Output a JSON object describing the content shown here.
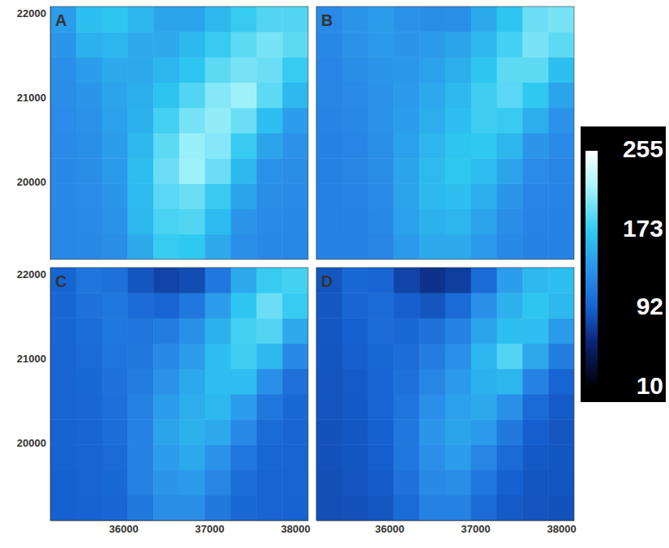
{
  "chart_data": [
    {
      "type": "heatmap",
      "title": "A",
      "tick_labels": "y",
      "xlim": [
        35150,
        38150
      ],
      "ylim": [
        19080,
        22080
      ],
      "yticks": [
        20000,
        21000,
        22000
      ],
      "x": [
        35300,
        35600,
        35900,
        36200,
        36500,
        36800,
        37100,
        37400,
        37700,
        38000
      ],
      "y": [
        19230,
        19530,
        19830,
        20130,
        20430,
        20730,
        21030,
        21330,
        21630,
        21930
      ],
      "cells": [
        [
          124,
          125,
          128,
          150,
          175,
          172,
          150,
          130,
          125,
          124
        ],
        [
          124,
          126,
          132,
          160,
          182,
          185,
          162,
          135,
          126,
          125
        ],
        [
          125,
          127,
          135,
          162,
          188,
          195,
          175,
          145,
          128,
          126
        ],
        [
          125,
          128,
          138,
          165,
          195,
          215,
          195,
          160,
          132,
          128
        ],
        [
          126,
          130,
          140,
          160,
          190,
          212,
          205,
          175,
          145,
          132
        ],
        [
          127,
          132,
          142,
          155,
          180,
          200,
          210,
          195,
          165,
          140
        ],
        [
          128,
          135,
          145,
          152,
          168,
          185,
          205,
          215,
          190,
          160
        ],
        [
          130,
          140,
          150,
          150,
          158,
          170,
          190,
          200,
          195,
          175
        ],
        [
          135,
          155,
          158,
          150,
          150,
          160,
          175,
          190,
          200,
          190
        ],
        [
          140,
          165,
          170,
          158,
          145,
          145,
          160,
          175,
          185,
          185
        ]
      ]
    },
    {
      "type": "heatmap",
      "title": "B",
      "tick_labels": false,
      "xlim": [
        35150,
        38150
      ],
      "ylim": [
        19080,
        22080
      ],
      "x": [
        35300,
        35600,
        35900,
        36200,
        36500,
        36800,
        37100,
        37400,
        37700,
        38000
      ],
      "y": [
        19230,
        19530,
        19830,
        20130,
        20430,
        20730,
        21030,
        21330,
        21630,
        21930
      ],
      "cells": [
        [
          118,
          119,
          122,
          138,
          150,
          150,
          138,
          125,
          120,
          119
        ],
        [
          118,
          120,
          124,
          142,
          155,
          158,
          145,
          128,
          121,
          120
        ],
        [
          119,
          121,
          126,
          145,
          160,
          165,
          152,
          135,
          123,
          121
        ],
        [
          119,
          122,
          128,
          145,
          162,
          172,
          165,
          145,
          127,
          123
        ],
        [
          120,
          123,
          130,
          142,
          158,
          170,
          172,
          158,
          135,
          126
        ],
        [
          121,
          124,
          132,
          140,
          152,
          165,
          178,
          175,
          152,
          132
        ],
        [
          122,
          126,
          133,
          138,
          148,
          160,
          178,
          188,
          172,
          145
        ],
        [
          123,
          128,
          135,
          136,
          142,
          152,
          170,
          190,
          190,
          165
        ],
        [
          124,
          132,
          138,
          135,
          138,
          145,
          160,
          180,
          200,
          190
        ],
        [
          125,
          135,
          140,
          132,
          128,
          130,
          150,
          170,
          195,
          200
        ]
      ]
    },
    {
      "type": "heatmap",
      "title": "C",
      "tick_labels": true,
      "xlim": [
        35150,
        38150
      ],
      "ylim": [
        19080,
        22080
      ],
      "xticks": [
        36000,
        37000,
        38000
      ],
      "yticks": [
        20000,
        21000,
        22000
      ],
      "x": [
        35300,
        35600,
        35900,
        36200,
        36500,
        36800,
        37100,
        37400,
        37700,
        38000
      ],
      "y": [
        19230,
        19530,
        19830,
        20130,
        20430,
        20730,
        21030,
        21330,
        21630,
        21930
      ],
      "cells": [
        [
          92,
          93,
          96,
          112,
          128,
          128,
          112,
          98,
          94,
          93
        ],
        [
          92,
          94,
          98,
          118,
          135,
          138,
          122,
          102,
          95,
          94
        ],
        [
          93,
          95,
          100,
          120,
          140,
          148,
          132,
          110,
          97,
          95
        ],
        [
          93,
          96,
          102,
          120,
          145,
          155,
          148,
          125,
          100,
          96
        ],
        [
          94,
          97,
          104,
          118,
          140,
          152,
          160,
          140,
          110,
          98
        ],
        [
          94,
          98,
          106,
          115,
          132,
          148,
          165,
          165,
          130,
          105
        ],
        [
          95,
          100,
          108,
          112,
          125,
          140,
          165,
          178,
          160,
          125
        ],
        [
          96,
          102,
          110,
          108,
          115,
          130,
          155,
          180,
          185,
          150
        ],
        [
          96,
          106,
          110,
          100,
          95,
          110,
          140,
          170,
          195,
          175
        ],
        [
          95,
          108,
          105,
          85,
          75,
          80,
          110,
          150,
          175,
          180
        ]
      ]
    },
    {
      "type": "heatmap",
      "title": "D",
      "tick_labels": "x",
      "xlim": [
        35150,
        38150
      ],
      "ylim": [
        19080,
        22080
      ],
      "xticks": [
        36000,
        37000,
        38000
      ],
      "x": [
        35300,
        35600,
        35900,
        36200,
        36500,
        36800,
        37100,
        37400,
        37700,
        38000
      ],
      "y": [
        19230,
        19530,
        19830,
        20130,
        20430,
        20730,
        21030,
        21330,
        21630,
        21930
      ],
      "cells": [
        [
          82,
          83,
          86,
          100,
          118,
          118,
          100,
          88,
          84,
          83
        ],
        [
          82,
          84,
          88,
          106,
          125,
          128,
          110,
          92,
          85,
          84
        ],
        [
          83,
          85,
          90,
          110,
          130,
          140,
          122,
          100,
          87,
          85
        ],
        [
          83,
          86,
          92,
          110,
          135,
          145,
          138,
          112,
          90,
          86
        ],
        [
          84,
          87,
          94,
          108,
          130,
          142,
          150,
          130,
          100,
          88
        ],
        [
          84,
          88,
          96,
          105,
          122,
          138,
          155,
          158,
          120,
          95
        ],
        [
          85,
          90,
          98,
          102,
          115,
          130,
          158,
          185,
          148,
          115
        ],
        [
          86,
          92,
          100,
          98,
          105,
          120,
          145,
          165,
          165,
          138
        ],
        [
          86,
          96,
          100,
          90,
          85,
          100,
          130,
          155,
          170,
          160
        ],
        [
          85,
          98,
          95,
          75,
          65,
          72,
          100,
          140,
          160,
          165
        ]
      ]
    }
  ],
  "colorbar": {
    "range": [
      10,
      255
    ],
    "ticks": [
      10,
      92,
      173,
      255
    ]
  }
}
